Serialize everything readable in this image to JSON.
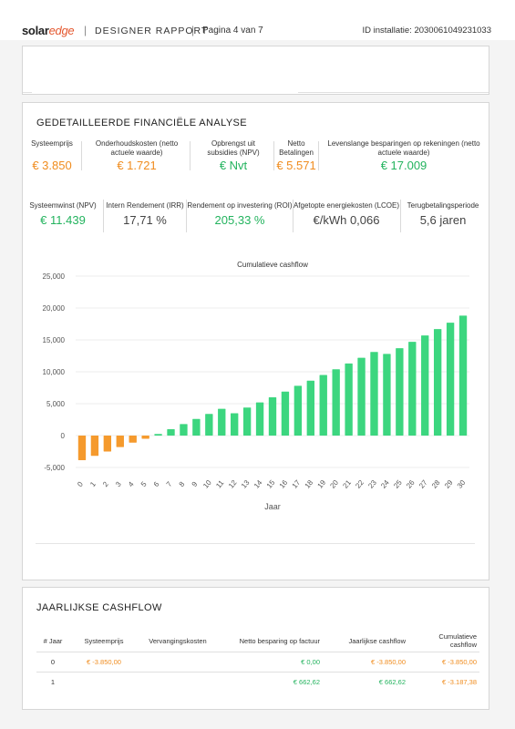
{
  "header": {
    "logo_solar": "solar",
    "logo_edge": "edge",
    "title": "DESIGNER RAPPORT",
    "page": "Pagina 4 van 7",
    "installation_id": "ID installatie: 2030061049231033"
  },
  "financial": {
    "title": "GEDETAILLEERDE FINANCIËLE ANALYSE",
    "row1": [
      {
        "label": "Systeemprijs",
        "value": "€ 3.850",
        "color": "orange"
      },
      {
        "label": "Onderhoudskosten (netto actuele waarde)",
        "value": "€ 1.721",
        "color": "orange"
      },
      {
        "label": "Opbrengst uit subsidies (NPV)",
        "value": "€ Nvt",
        "color": "green"
      },
      {
        "label": "Netto Betalingen",
        "value": "€ 5.571",
        "color": "orange"
      },
      {
        "label": "Levenslange besparingen op rekeningen (netto actuele waarde)",
        "value": "€ 17.009",
        "color": "green"
      }
    ],
    "row2": [
      {
        "label": "Systeemwinst (NPV)",
        "value": "€ 11.439",
        "color": "green"
      },
      {
        "label": "Intern Rendement (IRR)",
        "value": "17,71 %",
        "color": "gray"
      },
      {
        "label": "Rendement op investering (ROI)",
        "value": "205,33 %",
        "color": "green"
      },
      {
        "label": "Afgetopte energiekosten (LCOE)",
        "value": "€/kWh 0,066",
        "color": "gray"
      },
      {
        "label": "Terugbetalingsperiode",
        "value": "5,6 jaren",
        "color": "gray"
      }
    ]
  },
  "chart_data": {
    "type": "bar",
    "title": "Cumulatieve cashflow",
    "xlabel": "Jaar",
    "ylabel": "",
    "ylim": [
      -5000,
      25000
    ],
    "yticks": [
      "-5,000",
      "0",
      "5,000",
      "10,000",
      "15,000",
      "20,000",
      "25,000"
    ],
    "ytick_values": [
      -5000,
      0,
      5000,
      10000,
      15000,
      20000,
      25000
    ],
    "categories": [
      "0",
      "1",
      "2",
      "3",
      "4",
      "5",
      "6",
      "7",
      "8",
      "9",
      "10",
      "11",
      "12",
      "13",
      "14",
      "15",
      "16",
      "17",
      "18",
      "19",
      "20",
      "21",
      "22",
      "23",
      "24",
      "25",
      "26",
      "27",
      "28",
      "29",
      "30"
    ],
    "values": [
      -3850,
      -3187,
      -2500,
      -1800,
      -1100,
      -500,
      250,
      1000,
      1800,
      2600,
      3400,
      4200,
      3500,
      4400,
      5200,
      6000,
      6900,
      7800,
      8600,
      9500,
      10400,
      11300,
      12200,
      13100,
      12800,
      13700,
      14700,
      15700,
      16700,
      17700,
      18800
    ],
    "colors": {
      "negative": "#f59a2d",
      "positive": "#3cd67f"
    },
    "grid": true
  },
  "cashflow": {
    "title": "JAARLIJKSE CASHFLOW",
    "columns": [
      "# Jaar",
      "Systeemprijs",
      "Vervangingskosten",
      "Netto besparing op factuur",
      "Jaarlijkse cashflow",
      "Cumulatieve cashflow"
    ],
    "rows": [
      [
        "0",
        "€ -3.850,00",
        "",
        "€ 0,00",
        "€ -3.850,00",
        "€ -3.850,00"
      ],
      [
        "1",
        "",
        "",
        "€ 662,62",
        "€ 662,62",
        "€ -3.187,38"
      ]
    ]
  }
}
